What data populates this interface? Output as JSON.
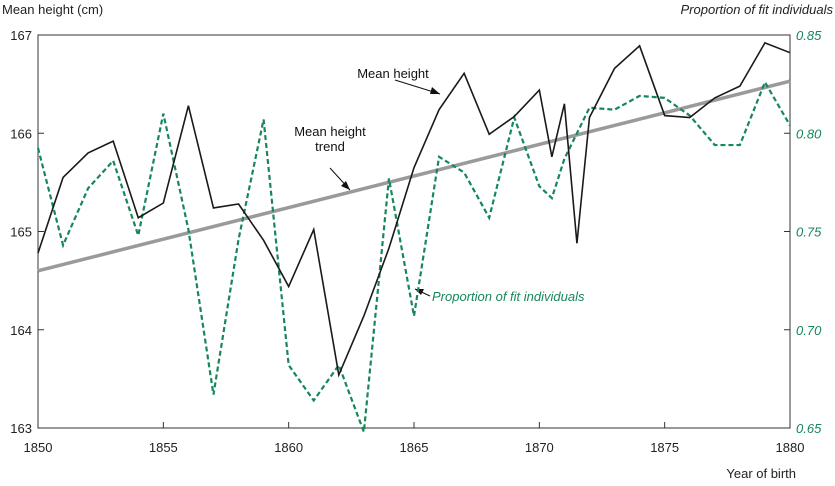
{
  "chart_data": {
    "type": "line",
    "y_label": "Mean height (cm)",
    "y2_label": "Proportion of fit individuals",
    "x_label": "Year of birth",
    "xlim": [
      1850,
      1880
    ],
    "xticks": [
      1850,
      1855,
      1860,
      1865,
      1870,
      1875,
      1880
    ],
    "ylim": [
      163,
      167
    ],
    "yticks": [
      163,
      164,
      165,
      166,
      167
    ],
    "y2lim": [
      0.65,
      0.85
    ],
    "y2ticks": [
      0.65,
      {
        "value": 0.7,
        "label": "0.70"
      },
      0.75,
      {
        "value": 0.8,
        "label": "0.80"
      },
      0.85
    ],
    "series": [
      {
        "name": "Mean height",
        "color": "#1a1a1a",
        "style": "solid",
        "x": [
          1850,
          1851,
          1852,
          1853,
          1854,
          1855,
          1856,
          1857,
          1858,
          1859,
          1860,
          1861,
          1862,
          1863,
          1864,
          1865,
          1866,
          1867,
          1868,
          1869,
          1870,
          1870.5,
          1871,
          1871.5,
          1872,
          1873,
          1874,
          1875,
          1876,
          1877,
          1878,
          1879,
          1880
        ],
        "values": [
          164.78,
          165.55,
          165.8,
          165.92,
          165.14,
          165.29,
          166.28,
          165.24,
          165.28,
          164.91,
          164.44,
          165.02,
          163.54,
          164.14,
          164.83,
          165.65,
          166.24,
          166.61,
          165.99,
          166.17,
          166.44,
          165.76,
          166.3,
          164.88,
          166.16,
          166.66,
          166.89,
          166.18,
          166.16,
          166.36,
          166.48,
          166.92,
          166.82
        ]
      },
      {
        "name": "Proportion of fit individuals",
        "color": "#17875a",
        "style": "dashed",
        "axis": "y2",
        "x": [
          1850,
          1851,
          1852,
          1853,
          1854,
          1855,
          1856,
          1857,
          1858,
          1859,
          1860,
          1861,
          1862,
          1863,
          1864,
          1865,
          1866,
          1867,
          1868,
          1869,
          1870,
          1870.5,
          1871,
          1872,
          1873,
          1874,
          1875,
          1876,
          1877,
          1878,
          1879,
          1880
        ],
        "values": [
          0.7925,
          0.743,
          0.772,
          0.786,
          0.748,
          0.81,
          0.751,
          0.667,
          0.746,
          0.807,
          0.682,
          0.664,
          0.682,
          0.648,
          0.777,
          0.707,
          0.788,
          0.78,
          0.757,
          0.808,
          0.773,
          0.767,
          0.787,
          0.813,
          0.812,
          0.819,
          0.818,
          0.809,
          0.794,
          0.794,
          0.826,
          0.804
        ]
      },
      {
        "name": "Mean height trend",
        "color": "#9a9a9a",
        "style": "thick",
        "x": [
          1850,
          1880
        ],
        "values": [
          164.6,
          166.53
        ]
      }
    ]
  }
}
